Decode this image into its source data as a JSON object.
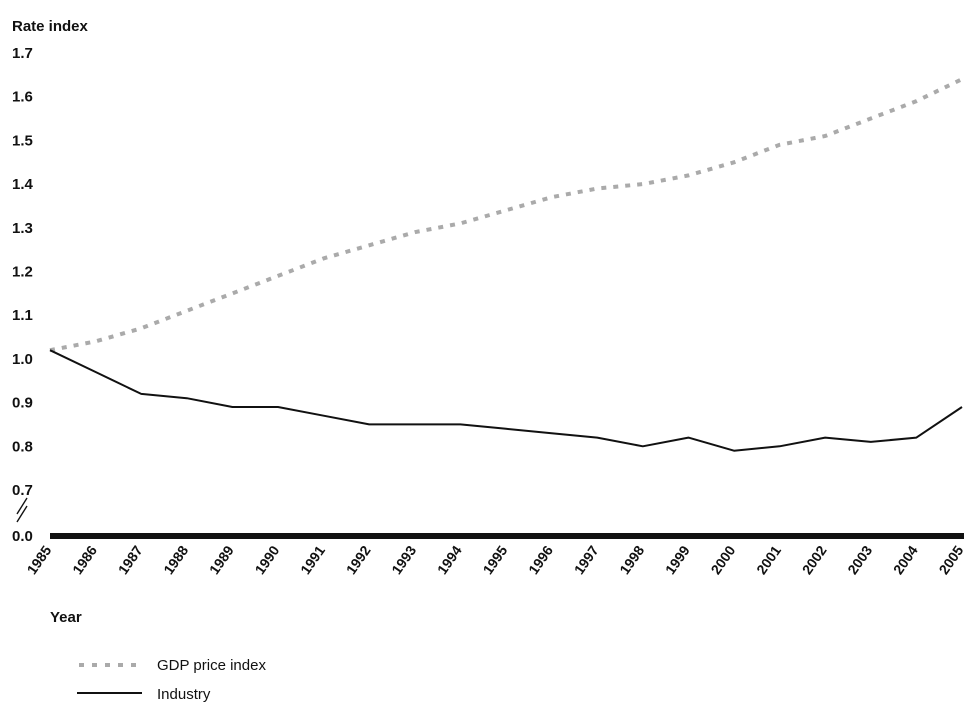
{
  "chart_data": {
    "type": "line",
    "ylabel": "Rate index",
    "xlabel": "Year",
    "categories": [
      "1985",
      "1986",
      "1987",
      "1988",
      "1989",
      "1990",
      "1991",
      "1992",
      "1993",
      "1994",
      "1995",
      "1996",
      "1997",
      "1998",
      "1999",
      "2000",
      "2001",
      "2002",
      "2003",
      "2004",
      "2005"
    ],
    "y_ticks": [
      "1.7",
      "1.6",
      "1.5",
      "1.4",
      "1.3",
      "1.2",
      "1.1",
      "1.0",
      "0.9",
      "0.8",
      "0.7",
      "0.0"
    ],
    "ylim": [
      0.7,
      1.7
    ],
    "axis_break": true,
    "grid": false,
    "legend_position": "bottom-left",
    "series": [
      {
        "name": "GDP price index",
        "style": "dotted",
        "color": "#aaaaaa",
        "values": [
          1.02,
          1.04,
          1.07,
          1.11,
          1.15,
          1.19,
          1.23,
          1.26,
          1.29,
          1.31,
          1.34,
          1.37,
          1.39,
          1.4,
          1.42,
          1.45,
          1.49,
          1.51,
          1.55,
          1.59,
          1.64
        ]
      },
      {
        "name": "Industry",
        "style": "solid",
        "color": "#111111",
        "values": [
          1.02,
          0.97,
          0.92,
          0.91,
          0.89,
          0.89,
          0.87,
          0.85,
          0.85,
          0.85,
          0.84,
          0.83,
          0.82,
          0.8,
          0.82,
          0.79,
          0.8,
          0.82,
          0.81,
          0.82,
          0.89
        ]
      }
    ]
  }
}
